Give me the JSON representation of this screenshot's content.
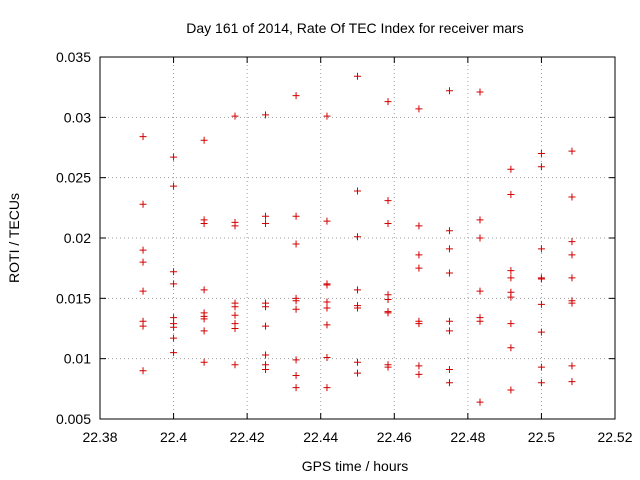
{
  "chart_data": {
    "type": "scatter",
    "title": "Day 161 of 2014, Rate Of TEC Index for receiver mars",
    "xlabel": "GPS time / hours",
    "ylabel": "ROTI / TECUs",
    "xlim": [
      22.38,
      22.52
    ],
    "ylim": [
      0.005,
      0.035
    ],
    "xticks": [
      22.38,
      22.4,
      22.42,
      22.44,
      22.46,
      22.48,
      22.5,
      22.52
    ],
    "xtick_labels": [
      "22.38",
      "22.4",
      "22.42",
      "22.44",
      "22.46",
      "22.48",
      "22.5",
      "22.52"
    ],
    "yticks": [
      0.005,
      0.01,
      0.015,
      0.02,
      0.025,
      0.03,
      0.035
    ],
    "ytick_labels": [
      "0.005",
      "0.01",
      "0.015",
      "0.02",
      "0.025",
      "0.03",
      "0.035"
    ],
    "grid": true,
    "marker": "+",
    "color": "#d40000",
    "series": [
      {
        "name": "ROTI",
        "points": [
          [
            22.3917,
            0.0284
          ],
          [
            22.3917,
            0.0228
          ],
          [
            22.3917,
            0.019
          ],
          [
            22.3917,
            0.018
          ],
          [
            22.3917,
            0.0156
          ],
          [
            22.3917,
            0.0131
          ],
          [
            22.3917,
            0.0127
          ],
          [
            22.3917,
            0.009
          ],
          [
            22.4,
            0.0267
          ],
          [
            22.4,
            0.0243
          ],
          [
            22.4,
            0.0172
          ],
          [
            22.4,
            0.0162
          ],
          [
            22.4,
            0.0134
          ],
          [
            22.4,
            0.0129
          ],
          [
            22.4,
            0.0126
          ],
          [
            22.4,
            0.0117
          ],
          [
            22.4,
            0.0105
          ],
          [
            22.4083,
            0.0281
          ],
          [
            22.4083,
            0.0215
          ],
          [
            22.4083,
            0.0212
          ],
          [
            22.4083,
            0.0157
          ],
          [
            22.4083,
            0.0138
          ],
          [
            22.4083,
            0.0135
          ],
          [
            22.4083,
            0.0133
          ],
          [
            22.4083,
            0.0123
          ],
          [
            22.4083,
            0.0097
          ],
          [
            22.4167,
            0.0301
          ],
          [
            22.4167,
            0.0213
          ],
          [
            22.4167,
            0.021
          ],
          [
            22.4167,
            0.0146
          ],
          [
            22.4167,
            0.0143
          ],
          [
            22.4167,
            0.0136
          ],
          [
            22.4167,
            0.0129
          ],
          [
            22.4167,
            0.0125
          ],
          [
            22.4167,
            0.0095
          ],
          [
            22.425,
            0.0302
          ],
          [
            22.425,
            0.0218
          ],
          [
            22.425,
            0.0212
          ],
          [
            22.425,
            0.0146
          ],
          [
            22.425,
            0.0143
          ],
          [
            22.425,
            0.0127
          ],
          [
            22.425,
            0.0103
          ],
          [
            22.425,
            0.0095
          ],
          [
            22.425,
            0.0091
          ],
          [
            22.4333,
            0.0318
          ],
          [
            22.4333,
            0.0218
          ],
          [
            22.4333,
            0.0195
          ],
          [
            22.4333,
            0.015
          ],
          [
            22.4333,
            0.0148
          ],
          [
            22.4333,
            0.0141
          ],
          [
            22.4333,
            0.0099
          ],
          [
            22.4333,
            0.0086
          ],
          [
            22.4333,
            0.0076
          ],
          [
            22.4417,
            0.0301
          ],
          [
            22.4417,
            0.0214
          ],
          [
            22.4417,
            0.0162
          ],
          [
            22.4417,
            0.0161
          ],
          [
            22.4417,
            0.0147
          ],
          [
            22.4417,
            0.0142
          ],
          [
            22.4417,
            0.0128
          ],
          [
            22.4417,
            0.0101
          ],
          [
            22.4417,
            0.0076
          ],
          [
            22.45,
            0.0334
          ],
          [
            22.45,
            0.0239
          ],
          [
            22.45,
            0.0201
          ],
          [
            22.45,
            0.0157
          ],
          [
            22.45,
            0.0144
          ],
          [
            22.45,
            0.0142
          ],
          [
            22.45,
            0.0097
          ],
          [
            22.45,
            0.0088
          ],
          [
            22.4583,
            0.0313
          ],
          [
            22.4583,
            0.0231
          ],
          [
            22.4583,
            0.0212
          ],
          [
            22.4583,
            0.0153
          ],
          [
            22.4583,
            0.0149
          ],
          [
            22.4583,
            0.0139
          ],
          [
            22.4583,
            0.0138
          ],
          [
            22.4583,
            0.0095
          ],
          [
            22.4583,
            0.0093
          ],
          [
            22.4667,
            0.0307
          ],
          [
            22.4667,
            0.021
          ],
          [
            22.4667,
            0.0186
          ],
          [
            22.4667,
            0.0175
          ],
          [
            22.4667,
            0.0131
          ],
          [
            22.4667,
            0.0129
          ],
          [
            22.4667,
            0.0094
          ],
          [
            22.4667,
            0.0087
          ],
          [
            22.475,
            0.0322
          ],
          [
            22.475,
            0.0206
          ],
          [
            22.475,
            0.0191
          ],
          [
            22.475,
            0.0171
          ],
          [
            22.475,
            0.0131
          ],
          [
            22.475,
            0.0123
          ],
          [
            22.475,
            0.0091
          ],
          [
            22.475,
            0.008
          ],
          [
            22.4833,
            0.0321
          ],
          [
            22.4833,
            0.0215
          ],
          [
            22.4833,
            0.02
          ],
          [
            22.4833,
            0.0156
          ],
          [
            22.4833,
            0.0134
          ],
          [
            22.4833,
            0.0131
          ],
          [
            22.4833,
            0.0064
          ],
          [
            22.4917,
            0.0257
          ],
          [
            22.4917,
            0.0236
          ],
          [
            22.4917,
            0.0173
          ],
          [
            22.4917,
            0.0167
          ],
          [
            22.4917,
            0.0155
          ],
          [
            22.4917,
            0.0151
          ],
          [
            22.4917,
            0.0129
          ],
          [
            22.4917,
            0.0109
          ],
          [
            22.4917,
            0.0074
          ],
          [
            22.5,
            0.027
          ],
          [
            22.5,
            0.0259
          ],
          [
            22.5,
            0.0191
          ],
          [
            22.5,
            0.0167
          ],
          [
            22.5,
            0.0166
          ],
          [
            22.5,
            0.0145
          ],
          [
            22.5,
            0.0122
          ],
          [
            22.5,
            0.0093
          ],
          [
            22.5,
            0.008
          ],
          [
            22.5083,
            0.0272
          ],
          [
            22.5083,
            0.0234
          ],
          [
            22.5083,
            0.0197
          ],
          [
            22.5083,
            0.0186
          ],
          [
            22.5083,
            0.0167
          ],
          [
            22.5083,
            0.0148
          ],
          [
            22.5083,
            0.0146
          ],
          [
            22.5083,
            0.0094
          ],
          [
            22.5083,
            0.0081
          ]
        ]
      }
    ]
  }
}
